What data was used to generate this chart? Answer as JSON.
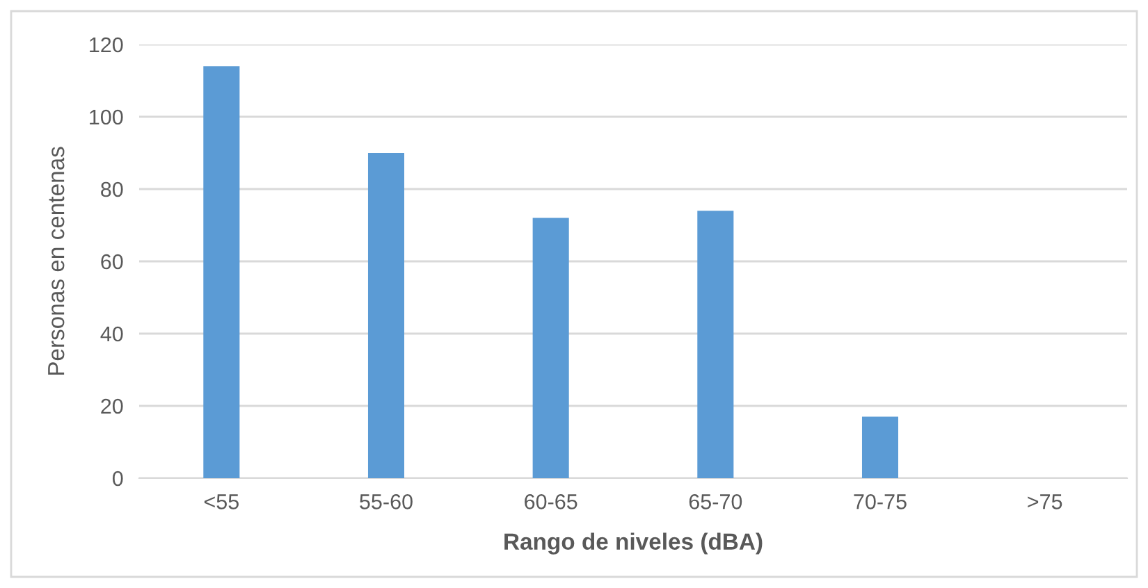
{
  "chart_data": {
    "type": "bar",
    "xlabel": "Rango de niveles (dBA)",
    "ylabel": "Personas en centenas",
    "categories": [
      "<55",
      "55-60",
      "60-65",
      "65-70",
      "70-75",
      ">75"
    ],
    "values": [
      114,
      90,
      72,
      74,
      17,
      0
    ],
    "color": "#5b9bd5",
    "ylim": [
      0,
      120
    ],
    "yticks": [
      0,
      20,
      40,
      60,
      80,
      100,
      120
    ],
    "grid": "y",
    "legend": false
  }
}
